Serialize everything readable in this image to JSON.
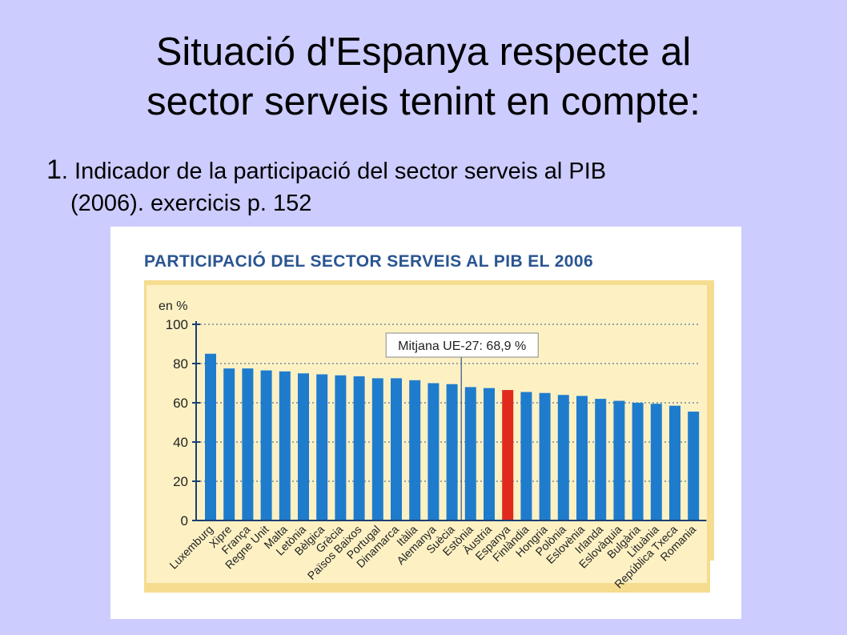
{
  "slide": {
    "title_line1": "Situació d'Espanya respecte al",
    "title_line2": "sector serveis tenint en compte:",
    "sub_num": "1",
    "sub_line1": ". Indicador de la participació del sector serveis al PIB",
    "sub_line2": "(2006). exercicis p. 152"
  },
  "colors": {
    "bar": "#1f7ccc",
    "highlight": "#e02a1e",
    "panel": "#fdf1c4",
    "frame": "#f5dc8f",
    "title": "#2a5591"
  },
  "chart_data": {
    "type": "bar",
    "title": "PARTICIPACIÓ DEL SECTOR SERVEIS AL PIB EL 2006",
    "ylabel": "en %",
    "ylim": [
      0,
      100
    ],
    "yticks": [
      0,
      20,
      40,
      60,
      80,
      100
    ],
    "grid": true,
    "categories": [
      "Luxemburg",
      "Xipre",
      "França",
      "Regne Unit",
      "Malta",
      "Letònia",
      "Bèlgica",
      "Grècia",
      "Països Baixos",
      "Portugal",
      "Dinamarca",
      "Itàlia",
      "Alemanya",
      "Suècia",
      "Estònia",
      "Àustria",
      "Espanya",
      "Finlàndia",
      "Hongria",
      "Polònia",
      "Eslovènia",
      "Irlanda",
      "Eslovàquia",
      "Bulgària",
      "Lituània",
      "República Txeca",
      "Romania"
    ],
    "values": [
      85,
      77.5,
      77.5,
      76.5,
      76,
      75,
      74.5,
      74,
      73.5,
      72.5,
      72.5,
      71.5,
      70,
      69.5,
      68,
      67.5,
      66.5,
      65.5,
      65,
      64,
      63.5,
      62,
      61,
      60,
      59.5,
      58.5,
      55.5
    ],
    "highlight_category": "Espanya",
    "reference_line": {
      "label": "Mitjana UE-27: 68,9 %",
      "value": 68.9
    }
  }
}
